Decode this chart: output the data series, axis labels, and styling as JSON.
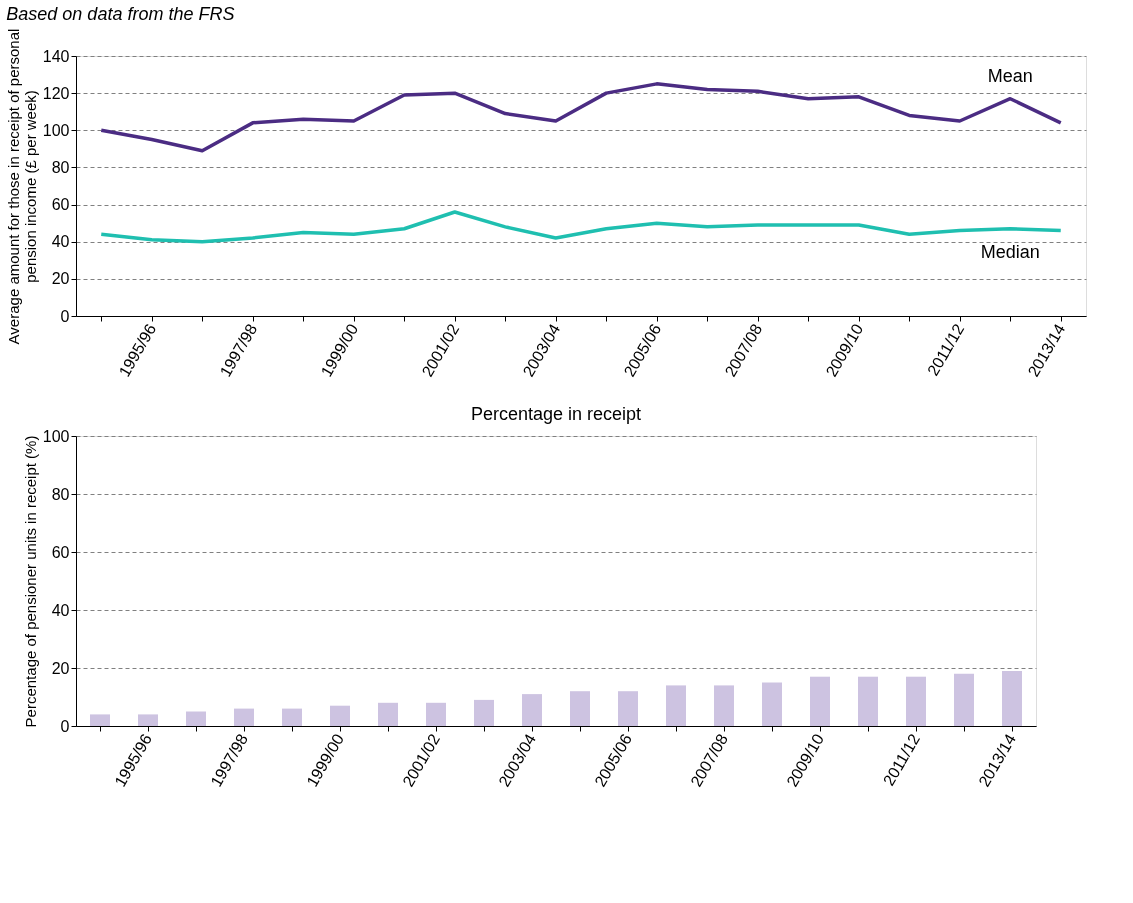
{
  "chart_data": [
    {
      "type": "line",
      "title": "Based on data from the FRS",
      "ylabel": "Average amount for those in receipt of personal pension income (£ per week)",
      "categories": [
        null,
        "1995/96",
        null,
        "1997/98",
        null,
        "1999/00",
        null,
        "2001/02",
        null,
        "2003/04",
        null,
        "2005/06",
        null,
        "2007/08",
        null,
        "2009/10",
        null,
        "2011/12",
        null,
        "2013/14"
      ],
      "series": [
        {
          "name": "Mean",
          "color": "#4b2c83",
          "values": [
            100,
            95,
            89,
            104,
            106,
            105,
            119,
            120,
            109,
            105,
            120,
            125,
            122,
            121,
            117,
            118,
            108,
            105,
            117,
            104
          ]
        },
        {
          "name": "Median",
          "color": "#1fbfb0",
          "values": [
            44,
            41,
            40,
            42,
            45,
            44,
            47,
            56,
            48,
            42,
            47,
            50,
            48,
            49,
            49,
            49,
            44,
            46,
            47,
            46
          ]
        }
      ],
      "ylim": [
        0,
        140
      ],
      "yticks": [
        0,
        20,
        40,
        60,
        80,
        100,
        120,
        140
      ],
      "grid": "y",
      "legend": false,
      "marker": "none",
      "line_style": "solid"
    },
    {
      "type": "bar",
      "title": "Percentage in receipt",
      "ylabel": "Percentage of pensioner units in receipt (%)",
      "categories": [
        null,
        "1995/96",
        null,
        "1997/98",
        null,
        "1999/00",
        null,
        "2001/02",
        null,
        "2003/04",
        null,
        "2005/06",
        null,
        "2007/08",
        null,
        "2009/10",
        null,
        "2011/12",
        null,
        "2013/14"
      ],
      "values": [
        4,
        4,
        5,
        6,
        6,
        7,
        8,
        8,
        9,
        11,
        12,
        12,
        14,
        14,
        15,
        17,
        17,
        17,
        18,
        19
      ],
      "color": "#cdc3e1",
      "ylim": [
        0,
        100
      ],
      "yticks": [
        0,
        20,
        40,
        60,
        80,
        100
      ],
      "grid": "y"
    }
  ]
}
